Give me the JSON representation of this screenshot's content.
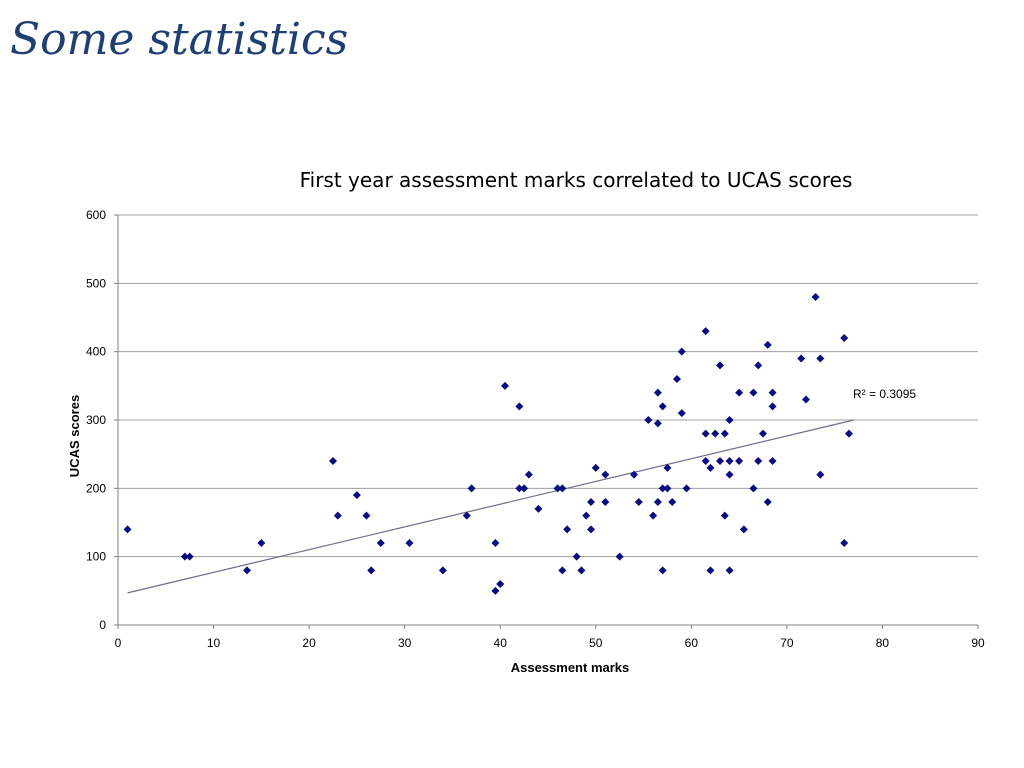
{
  "slide": {
    "title": "Some statistics"
  },
  "colors": {
    "title": "#1f3f73",
    "marker": "#0b0b80",
    "trendline": "#6e6e8a",
    "grid": "#a0a0a0"
  },
  "chart_data": {
    "type": "scatter",
    "title": "First year assessment marks correlated to UCAS scores",
    "xlabel": "Assessment marks",
    "ylabel": "UCAS scores",
    "xlim": [
      0,
      90
    ],
    "ylim": [
      0,
      600
    ],
    "xticks": [
      0,
      10,
      20,
      30,
      40,
      50,
      60,
      70,
      80,
      90
    ],
    "yticks": [
      0,
      100,
      200,
      300,
      400,
      500,
      600
    ],
    "grid": "horizontal",
    "marker": "diamond",
    "trendline": {
      "type": "linear",
      "x": [
        1,
        77
      ],
      "y": [
        47,
        300
      ],
      "label": "R² = 0.3095"
    },
    "points": [
      [
        1,
        140
      ],
      [
        7,
        100
      ],
      [
        7.5,
        100
      ],
      [
        13.5,
        80
      ],
      [
        15,
        120
      ],
      [
        22.5,
        240
      ],
      [
        23,
        160
      ],
      [
        25,
        190
      ],
      [
        26,
        160
      ],
      [
        26.5,
        80
      ],
      [
        27.5,
        120
      ],
      [
        30.5,
        120
      ],
      [
        34,
        80
      ],
      [
        36.5,
        160
      ],
      [
        37,
        200
      ],
      [
        39.5,
        50
      ],
      [
        39.5,
        120
      ],
      [
        40,
        60
      ],
      [
        40.5,
        350
      ],
      [
        42,
        320
      ],
      [
        42,
        200
      ],
      [
        42.5,
        200
      ],
      [
        43,
        220
      ],
      [
        44,
        170
      ],
      [
        46,
        200
      ],
      [
        46.5,
        200
      ],
      [
        46.5,
        80
      ],
      [
        47,
        140
      ],
      [
        48,
        100
      ],
      [
        48.5,
        80
      ],
      [
        49,
        160
      ],
      [
        49.5,
        180
      ],
      [
        49.5,
        140
      ],
      [
        50,
        230
      ],
      [
        51,
        220
      ],
      [
        51,
        180
      ],
      [
        52.5,
        100
      ],
      [
        54,
        220
      ],
      [
        54.5,
        180
      ],
      [
        55.5,
        300
      ],
      [
        56,
        160
      ],
      [
        56.5,
        295
      ],
      [
        56.5,
        340
      ],
      [
        56.5,
        180
      ],
      [
        57,
        320
      ],
      [
        57,
        200
      ],
      [
        57,
        80
      ],
      [
        57.5,
        230
      ],
      [
        57.5,
        200
      ],
      [
        58,
        180
      ],
      [
        58.5,
        360
      ],
      [
        59,
        400
      ],
      [
        59,
        310
      ],
      [
        59.5,
        200
      ],
      [
        61.5,
        430
      ],
      [
        61.5,
        280
      ],
      [
        61.5,
        240
      ],
      [
        62,
        230
      ],
      [
        62,
        80
      ],
      [
        62.5,
        280
      ],
      [
        63,
        380
      ],
      [
        63,
        240
      ],
      [
        63.5,
        280
      ],
      [
        63.5,
        160
      ],
      [
        64,
        300
      ],
      [
        64,
        240
      ],
      [
        64,
        220
      ],
      [
        64,
        80
      ],
      [
        65,
        340
      ],
      [
        65,
        240
      ],
      [
        65.5,
        140
      ],
      [
        66.5,
        340
      ],
      [
        66.5,
        200
      ],
      [
        67,
        380
      ],
      [
        67,
        240
      ],
      [
        67.5,
        280
      ],
      [
        68,
        410
      ],
      [
        68,
        180
      ],
      [
        68.5,
        340
      ],
      [
        68.5,
        320
      ],
      [
        68.5,
        240
      ],
      [
        71.5,
        390
      ],
      [
        72,
        330
      ],
      [
        73,
        480
      ],
      [
        73.5,
        390
      ],
      [
        73.5,
        220
      ],
      [
        76,
        420
      ],
      [
        76,
        120
      ],
      [
        76.5,
        280
      ]
    ]
  }
}
